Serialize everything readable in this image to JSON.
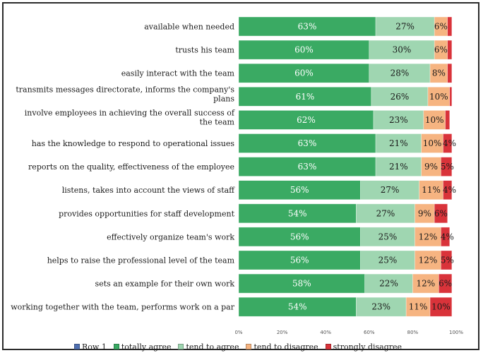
{
  "chart_data": {
    "type": "bar",
    "orientation": "horizontal",
    "stacked": true,
    "xlim": [
      0,
      100
    ],
    "xticks": [
      "0%",
      "20%",
      "40%",
      "60%",
      "80%",
      "100%"
    ],
    "categories": [
      "available when needed",
      "trusts his team",
      "easily interact with the team",
      "transmits messages directorate,  informs the company's plans",
      "involve employees in achieving the overall success of the team",
      "has the knowledge to respond to operational  issues",
      "reports on the quality, effectiveness of the employee",
      "listens, takes into account the views of staff",
      "provides opportunities  for staff development",
      "effectively organize team's  work",
      "helps to raise the professional level of the team",
      "sets an example  for their own work",
      "working together with the team,  performs work on a par"
    ],
    "category_lines": [
      [
        "available when needed"
      ],
      [
        "trusts his team"
      ],
      [
        "easily interact with the team"
      ],
      [
        "transmits messages directorate,  informs the company's",
        "plans"
      ],
      [
        "involve employees in achieving the overall success of",
        "the team"
      ],
      [
        "has the knowledge to respond to operational  issues"
      ],
      [
        "reports on the quality, effectiveness of the employee"
      ],
      [
        "listens, takes into account the views of staff"
      ],
      [
        "provides opportunities  for staff development"
      ],
      [
        "effectively organize team's  work"
      ],
      [
        "helps to raise the professional level of the team"
      ],
      [
        "sets an example  for their own work"
      ],
      [
        "working together with the team,  performs work on a par"
      ]
    ],
    "series": [
      {
        "name": "Row 1",
        "color": "#4f6fb0",
        "values": [
          0,
          0,
          0,
          0,
          0,
          0,
          0,
          0,
          0,
          0,
          0,
          0,
          0
        ]
      },
      {
        "name": "totally agree",
        "color": "#3aaa63",
        "values": [
          63,
          60,
          60,
          61,
          62,
          63,
          63,
          56,
          54,
          56,
          56,
          58,
          54
        ],
        "labels": [
          "63%",
          "60%",
          "60%",
          "61%",
          "62%",
          "63%",
          "63%",
          "56%",
          "54%",
          "56%",
          "56%",
          "58%",
          "54%"
        ]
      },
      {
        "name": "tend to agree",
        "color": "#9fd6b1",
        "values": [
          27,
          30,
          28,
          26,
          23,
          21,
          21,
          27,
          27,
          25,
          25,
          22,
          23
        ],
        "labels": [
          "27%",
          "30%",
          "28%",
          "26%",
          "23%",
          "21%",
          "21%",
          "27%",
          "27%",
          "25%",
          "25%",
          "22%",
          "23%"
        ]
      },
      {
        "name": "tend to disagree",
        "color": "#f6b481",
        "values": [
          6,
          6,
          8,
          10,
          10,
          10,
          9,
          11,
          9,
          12,
          12,
          12,
          11
        ],
        "labels": [
          "6%",
          "6%",
          "8%",
          "10%",
          "10%",
          "10%",
          "9%",
          "11%",
          "9%",
          "12%",
          "12%",
          "12%",
          "11%"
        ]
      },
      {
        "name": "strongly disagree",
        "color": "#d9333a",
        "values": [
          2,
          2,
          2,
          1,
          2,
          4,
          5,
          4,
          6,
          4,
          5,
          6,
          10
        ],
        "labels": [
          "",
          "",
          "",
          "",
          "",
          "4%",
          "5%",
          "4%",
          "6%",
          "4%",
          "5%",
          "6%",
          "10%"
        ]
      }
    ],
    "legend_position": "bottom",
    "grid": false
  }
}
